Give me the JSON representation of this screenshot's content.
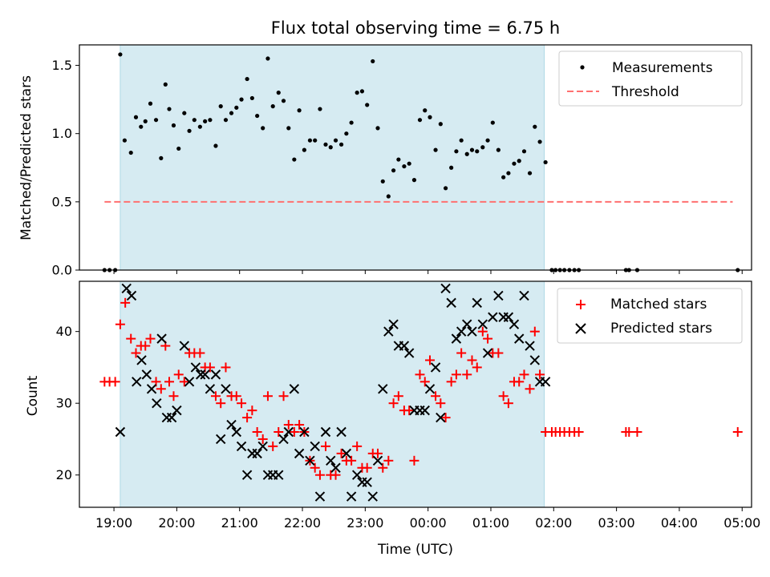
{
  "chart_data": [
    {
      "type": "scatter",
      "title": "Flux total observing time = 6.75 h",
      "ylabel": "Matched/Predicted stars",
      "xlabel": "",
      "ylim": [
        0,
        1.65
      ],
      "xlim_hours": [
        18.45,
        29.15
      ],
      "yticks": [
        0,
        0.5,
        1.0,
        1.5
      ],
      "ytick_labels": [
        "0.0",
        "0.5",
        "1.0",
        "1.5"
      ],
      "shaded_span_hours": [
        19.1,
        25.85
      ],
      "threshold": {
        "label": "Threshold",
        "value": 0.5,
        "x_range_hours": [
          18.85,
          28.85
        ],
        "color": "#ff7070"
      },
      "legend": [
        "Measurements",
        "Threshold"
      ],
      "series": [
        {
          "name": "Measurements",
          "color": "#000000",
          "x": [
            18.85,
            18.93,
            19.02,
            19.1,
            19.17,
            19.27,
            19.35,
            19.43,
            19.5,
            19.58,
            19.67,
            19.75,
            19.82,
            19.88,
            19.95,
            20.03,
            20.12,
            20.2,
            20.28,
            20.37,
            20.45,
            20.53,
            20.62,
            20.7,
            20.78,
            20.87,
            20.95,
            21.03,
            21.12,
            21.2,
            21.28,
            21.37,
            21.45,
            21.53,
            21.62,
            21.7,
            21.78,
            21.87,
            21.95,
            22.03,
            22.12,
            22.2,
            22.28,
            22.37,
            22.45,
            22.53,
            22.62,
            22.7,
            22.78,
            22.87,
            22.95,
            23.03,
            23.12,
            23.2,
            23.28,
            23.37,
            23.45,
            23.53,
            23.62,
            23.7,
            23.78,
            23.87,
            23.95,
            24.03,
            24.12,
            24.2,
            24.28,
            24.37,
            24.45,
            24.53,
            24.62,
            24.7,
            24.78,
            24.87,
            24.95,
            25.03,
            25.12,
            25.2,
            25.28,
            25.37,
            25.45,
            25.53,
            25.62,
            25.7,
            25.78,
            25.87,
            25.97,
            26.03,
            26.1,
            26.17,
            26.25,
            26.33,
            26.4,
            27.15,
            27.2,
            27.33,
            28.93
          ],
          "y": [
            0,
            0,
            0,
            1.58,
            0.95,
            0.86,
            1.12,
            1.05,
            1.09,
            1.22,
            1.1,
            0.82,
            1.36,
            1.18,
            1.06,
            0.89,
            1.15,
            1.02,
            1.1,
            1.05,
            1.09,
            1.1,
            0.91,
            1.2,
            1.1,
            1.15,
            1.19,
            1.25,
            1.4,
            1.26,
            1.13,
            1.04,
            1.55,
            1.2,
            1.3,
            1.24,
            1.04,
            0.81,
            1.17,
            0.88,
            0.95,
            0.95,
            1.18,
            0.92,
            0.9,
            0.95,
            0.92,
            1.0,
            1.08,
            1.3,
            1.31,
            1.21,
            1.53,
            1.04,
            0.65,
            0.54,
            0.73,
            0.81,
            0.76,
            0.78,
            0.66,
            1.1,
            1.17,
            1.12,
            0.88,
            1.07,
            0.6,
            0.75,
            0.87,
            0.95,
            0.85,
            0.88,
            0.87,
            0.9,
            0.95,
            1.08,
            0.88,
            0.68,
            0.71,
            0.78,
            0.8,
            0.87,
            0.71,
            1.05,
            0.94,
            0.79,
            0,
            0,
            0,
            0,
            0,
            0,
            0,
            0,
            0,
            0,
            0
          ]
        }
      ]
    },
    {
      "type": "scatter",
      "title": "",
      "ylabel": "Count",
      "xlabel": "Time (UTC)",
      "ylim": [
        15.5,
        47
      ],
      "xlim_hours": [
        18.45,
        29.15
      ],
      "yticks": [
        20,
        30,
        40
      ],
      "ytick_labels": [
        "20",
        "30",
        "40"
      ],
      "xticks_hours": [
        19,
        20,
        21,
        22,
        23,
        24,
        25,
        26,
        27,
        28,
        29
      ],
      "xtick_labels": [
        "19:00",
        "20:00",
        "21:00",
        "22:00",
        "23:00",
        "00:00",
        "01:00",
        "02:00",
        "03:00",
        "04:00",
        "05:00"
      ],
      "shaded_span_hours": [
        19.1,
        25.85
      ],
      "legend": [
        "Matched stars",
        "Predicted stars"
      ],
      "series": [
        {
          "name": "Matched stars",
          "marker": "+",
          "color": "#ff0000",
          "x": [
            18.85,
            18.93,
            19.02,
            19.1,
            19.18,
            19.27,
            19.35,
            19.43,
            19.5,
            19.58,
            19.67,
            19.75,
            19.82,
            19.88,
            19.95,
            20.03,
            20.12,
            20.2,
            20.28,
            20.37,
            20.45,
            20.53,
            20.62,
            20.7,
            20.78,
            20.87,
            20.95,
            21.03,
            21.12,
            21.2,
            21.28,
            21.37,
            21.45,
            21.53,
            21.62,
            21.7,
            21.78,
            21.87,
            21.95,
            22.03,
            22.12,
            22.2,
            22.28,
            22.37,
            22.45,
            22.53,
            22.62,
            22.7,
            22.78,
            22.87,
            22.95,
            23.03,
            23.12,
            23.2,
            23.28,
            23.37,
            23.45,
            23.53,
            23.62,
            23.7,
            23.78,
            23.87,
            23.95,
            24.03,
            24.12,
            24.2,
            24.28,
            24.37,
            24.45,
            24.53,
            24.62,
            24.7,
            24.78,
            24.87,
            24.95,
            25.03,
            25.12,
            25.2,
            25.28,
            25.37,
            25.45,
            25.53,
            25.62,
            25.7,
            25.78,
            25.87,
            25.97,
            26.03,
            26.1,
            26.17,
            26.25,
            26.33,
            26.4,
            27.15,
            27.2,
            27.33,
            28.93
          ],
          "y": [
            33,
            33,
            33,
            41,
            44,
            39,
            37,
            38,
            38,
            39,
            33,
            32,
            38,
            33,
            31,
            34,
            33,
            37,
            37,
            37,
            35,
            35,
            31,
            30,
            35,
            31,
            31,
            30,
            28,
            29,
            26,
            25,
            31,
            24,
            26,
            31,
            27,
            26,
            27,
            26,
            22,
            21,
            20,
            24,
            20,
            20,
            23,
            22,
            22,
            24,
            21,
            21,
            23,
            23,
            21,
            22,
            30,
            31,
            29,
            29,
            22,
            34,
            33,
            36,
            31,
            30,
            28,
            33,
            34,
            37,
            34,
            36,
            35,
            40,
            39,
            37,
            37,
            31,
            30,
            33,
            33,
            34,
            32,
            40,
            34,
            26,
            26,
            26,
            26,
            26,
            26,
            26,
            26,
            26,
            26,
            26,
            26
          ]
        },
        {
          "name": "Predicted stars",
          "marker": "x",
          "color": "#000000",
          "x": [
            19.1,
            19.2,
            19.28,
            19.36,
            19.44,
            19.52,
            19.6,
            19.68,
            19.76,
            19.84,
            19.92,
            20.0,
            20.12,
            20.2,
            20.3,
            20.38,
            20.45,
            20.53,
            20.62,
            20.7,
            20.78,
            20.87,
            20.95,
            21.03,
            21.12,
            21.2,
            21.28,
            21.37,
            21.45,
            21.53,
            21.62,
            21.7,
            21.78,
            21.87,
            21.95,
            22.03,
            22.12,
            22.2,
            22.28,
            22.37,
            22.45,
            22.53,
            22.62,
            22.7,
            22.78,
            22.87,
            22.95,
            23.03,
            23.12,
            23.2,
            23.28,
            23.37,
            23.45,
            23.53,
            23.62,
            23.7,
            23.78,
            23.87,
            23.95,
            24.03,
            24.12,
            24.2,
            24.28,
            24.37,
            24.45,
            24.53,
            24.62,
            24.7,
            24.78,
            24.87,
            24.95,
            25.03,
            25.12,
            25.2,
            25.28,
            25.37,
            25.45,
            25.53,
            25.62,
            25.7,
            25.78,
            25.87
          ],
          "y": [
            26,
            46,
            45,
            33,
            36,
            34,
            32,
            30,
            39,
            28,
            28,
            29,
            38,
            33,
            35,
            34,
            34,
            32,
            34,
            25,
            32,
            27,
            26,
            24,
            20,
            23,
            23,
            24,
            20,
            20,
            20,
            25,
            26,
            32,
            23,
            26,
            22,
            24,
            17,
            26,
            22,
            21,
            26,
            23,
            17,
            20,
            19,
            19,
            17,
            22,
            32,
            40,
            41,
            38,
            38,
            37,
            29,
            29,
            29,
            32,
            35,
            28,
            46,
            44,
            39,
            40,
            41,
            40,
            44,
            41,
            37,
            42,
            45,
            42,
            42,
            41,
            39,
            45,
            38,
            36,
            33,
            33
          ]
        }
      ]
    }
  ]
}
